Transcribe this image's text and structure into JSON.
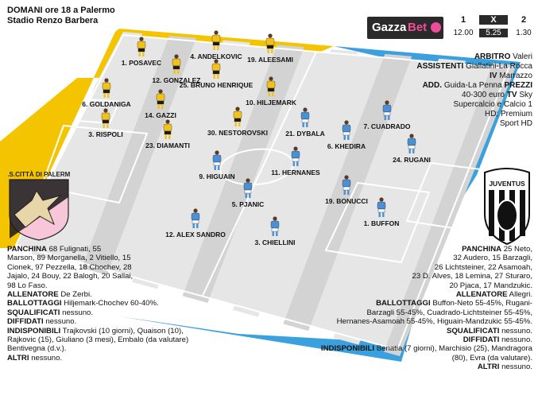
{
  "header": {
    "line1": "DOMANI ore 18 a Palermo",
    "line2": "Stadio Renzo Barbera"
  },
  "betting": {
    "brand_a": "Gazza",
    "brand_b": "Bet",
    "labels": [
      "1",
      "X",
      "2"
    ],
    "values": [
      "12.00",
      "5.25",
      "1.30"
    ]
  },
  "officials": {
    "arbitro_k": "ARBITRO",
    "arbitro_v": "Valeri",
    "assistenti_k": "ASSISTENTI",
    "assistenti_v": "Giallatini-La Rocca",
    "iv_k": "IV",
    "iv_v": "Marrazzo",
    "add_k": "ADD.",
    "add_v": "Guida-La Penna",
    "prezzi_k": "PREZZI",
    "prezzi_v": "40-300 euro",
    "tv_k": "TV",
    "tv_v": "Sky",
    "tv_v2": "Supercalcio e Calcio 1",
    "tv_v3": "HD; Premium",
    "tv_v4": "Sport HD"
  },
  "palermo": {
    "crest_text": "U.S.CITTÀ DI PALERMO",
    "players": [
      {
        "label": "1. POSAVEC"
      },
      {
        "label": "4. ANDELKOVIC"
      },
      {
        "label": "19. ALEESAMI"
      },
      {
        "label": "12. GONZALEZ"
      },
      {
        "label": "25. BRUNO HENRIQUE"
      },
      {
        "label": "6. GOLDANIGA"
      },
      {
        "label": "10. HILJEMARK"
      },
      {
        "label": "14. GAZZI"
      },
      {
        "label": "3. RISPOLI"
      },
      {
        "label": "30. NESTOROVSKI"
      },
      {
        "label": "23. DIAMANTI"
      }
    ],
    "panchina_k": "PANCHINA",
    "panchina_l1": "68 Fulignati, 55",
    "panchina_l2": "Marson, 89 Morganella, 2 Vitiello, 15",
    "panchina_l3": "Cionek, 97 Pezzella, 18 Chochev, 28",
    "panchina_l4": "Jajalo, 24 Bouy, 22 Balogh, 20 Sallai,",
    "panchina_l5": "98 Lo Faso.",
    "allenatore_k": "ALLENATORE",
    "allenatore_v": "De Zerbi.",
    "ballottaggi_k": "BALLOTTAGGI",
    "ballottaggi_v": "Hiljemark-Chochev 60-40%.",
    "squalificati_k": "SQUALIFICATI",
    "squalificati_v": "nessuno.",
    "diffidati_k": "DIFFIDATI",
    "diffidati_v": "nessuno.",
    "indisponibili_k": "INDISPONIBILI",
    "indisponibili_l1": "Trajkovski (10 giorni), Quaison (10),",
    "indisponibili_l2": "Rajkovic (15), Giuliano (3 mesi), Embalo (da valutare)",
    "indisponibili_l3": "Bentivegna (d.v.).",
    "altri_k": "ALTRI",
    "altri_v": "nessuno."
  },
  "juventus": {
    "crest_text": "JUVENTUS",
    "players": [
      {
        "label": "7. CUADRADO"
      },
      {
        "label": "21. DYBALA"
      },
      {
        "label": "6. KHEDIRA"
      },
      {
        "label": "24. RUGANI"
      },
      {
        "label": "9. HIGUAIN"
      },
      {
        "label": "11. HERNANES"
      },
      {
        "label": "5. PJANIC"
      },
      {
        "label": "19. BONUCCI"
      },
      {
        "label": "1. BUFFON"
      },
      {
        "label": "12. ALEX SANDRO"
      },
      {
        "label": "3. CHIELLINI"
      }
    ],
    "panchina_k": "PANCHINA",
    "panchina_l1": "25 Neto,",
    "panchina_l2": "32 Audero, 15 Barzagli,",
    "panchina_l3": "26 Lichtsteiner, 22 Asamoah,",
    "panchina_l4": "23 D. Alves, 18 Lemina, 27 Sturaro,",
    "panchina_l5": "20 Pjaca, 17 Mandzukic.",
    "allenatore_k": "ALLENATORE",
    "allenatore_v": "Allegri.",
    "ballottaggi_k": "BALLOTTAGGI",
    "ballottaggi_l1": "Buffon-Neto 55-45%, Rugani-",
    "ballottaggi_l2": "Barzagli 55-45%, Cuadrado-Lichtsteiner 55-45%,",
    "ballottaggi_l3": "Hernanes-Asamoah 55-45%, Higuain-Mandzukic 55-45%.",
    "squalificati_k": "SQUALIFICATI",
    "squalificati_v": "nessuno.",
    "diffidati_k": "DIFFIDATI",
    "diffidati_v": "nessuno.",
    "indisponibili_k": "INDISPONIBILI",
    "indisponibili_l1": "Benatia (7 giorni), Marchisio (25), Mandragora",
    "indisponibili_l2": "(80), Evra (da valutare).",
    "altri_k": "ALTRI",
    "altri_v": "nessuno."
  },
  "colors": {
    "palermo_shirt": "#f2c21a",
    "palermo_short": "#1a1a1a",
    "juve_shirt": "#4a90d6",
    "juve_short": "#ffffff",
    "yellow_band": "#f5c400",
    "blue_band": "#3aa0de",
    "pitch_light": "#e6e6e6",
    "pitch_dark": "#d3d3d3"
  }
}
